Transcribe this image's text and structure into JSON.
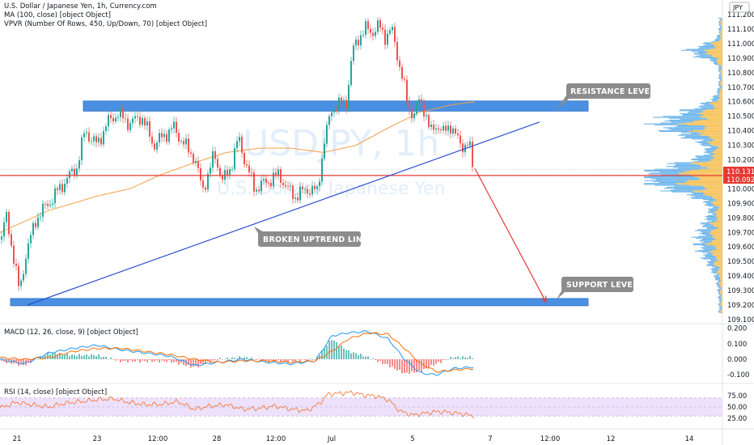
{
  "legend": {
    "main": "U.S. Dollar / Japanese Yen, 1h, Currency.com",
    "ma": "MA (100, close) [object Object]",
    "vpvr": "VPVR (Number Of Rows, 450, Up/Down, 70) [object Object]",
    "macd": "MACD (12, 26, close, 9) [object Object]",
    "rsi": "RSI (14, close) [object Object]"
  },
  "currency_badge": "JPY",
  "watermark": {
    "symbol": "USDJPY, 1h",
    "name": "U.S. Dollar / Japanese Yen"
  },
  "annotations": {
    "resistance": "RESISTANCE LEVEL",
    "support": "SUPPORT LEVEL",
    "uptrend": "BROKEN UPTREND LINE"
  },
  "price_badges": {
    "upper": "110.131",
    "lower": "110.092"
  },
  "colors": {
    "up": "#26a69a",
    "down": "#ef5350",
    "ma": "#f5a04a",
    "zone": "#4a90e2",
    "trend": "#2b4fd1",
    "horizontal": "#e53935",
    "projection": "#e53935",
    "macd": "#2196f3",
    "signal": "#ff6d00",
    "rsi": "#f57c3a",
    "rsi_band": "#ede1fb",
    "vpvr_up": "#6fb6ec",
    "vpvr_down": "#f7c35a"
  },
  "chart_data": {
    "type": "candlestick",
    "x_ticks": [
      "21",
      "23",
      "12:00",
      "28",
      "12:00",
      "Jul",
      "5",
      "7",
      "12:00",
      "12",
      "14"
    ],
    "price_axis": {
      "ticks": [
        "111.200",
        "111.100",
        "111.000",
        "110.900",
        "110.800",
        "110.700",
        "110.600",
        "110.500",
        "110.400",
        "110.300",
        "110.200",
        "110.000",
        "109.900",
        "109.800",
        "109.700",
        "109.600",
        "109.500",
        "109.400",
        "109.300",
        "109.200",
        "109.100"
      ],
      "range": [
        109.07,
        111.24
      ]
    },
    "candles_anchor_path": [
      [
        0,
        109.65
      ],
      [
        8,
        109.8
      ],
      [
        18,
        109.5
      ],
      [
        24,
        109.28
      ],
      [
        32,
        109.55
      ],
      [
        45,
        109.8
      ],
      [
        60,
        109.9
      ],
      [
        80,
        110.05
      ],
      [
        95,
        110.15
      ],
      [
        105,
        110.4
      ],
      [
        120,
        110.3
      ],
      [
        132,
        110.45
      ],
      [
        145,
        110.52
      ],
      [
        160,
        110.45
      ],
      [
        175,
        110.5
      ],
      [
        190,
        110.3
      ],
      [
        205,
        110.38
      ],
      [
        215,
        110.42
      ],
      [
        228,
        110.3
      ],
      [
        240,
        110.22
      ],
      [
        250,
        110.0
      ],
      [
        258,
        110.1
      ],
      [
        265,
        110.25
      ],
      [
        275,
        110.05
      ],
      [
        285,
        110.15
      ],
      [
        295,
        110.35
      ],
      [
        305,
        110.15
      ],
      [
        315,
        110.0
      ],
      [
        330,
        110.05
      ],
      [
        345,
        110.1
      ],
      [
        355,
        110.0
      ],
      [
        365,
        109.95
      ],
      [
        380,
        110.0
      ],
      [
        392,
        109.98
      ],
      [
        400,
        110.3
      ],
      [
        410,
        110.55
      ],
      [
        420,
        110.58
      ],
      [
        428,
        110.6
      ],
      [
        436,
        110.95
      ],
      [
        444,
        111.05
      ],
      [
        452,
        111.1
      ],
      [
        460,
        111.08
      ],
      [
        468,
        111.12
      ],
      [
        476,
        111.05
      ],
      [
        484,
        111.1
      ],
      [
        490,
        110.95
      ],
      [
        498,
        110.75
      ],
      [
        505,
        110.55
      ],
      [
        512,
        110.52
      ],
      [
        518,
        110.6
      ],
      [
        525,
        110.55
      ],
      [
        532,
        110.38
      ],
      [
        540,
        110.45
      ],
      [
        548,
        110.38
      ],
      [
        556,
        110.45
      ],
      [
        564,
        110.35
      ],
      [
        572,
        110.3
      ],
      [
        580,
        110.3
      ],
      [
        585,
        110.14
      ]
    ],
    "ma_path": [
      [
        0,
        109.7
      ],
      [
        60,
        109.85
      ],
      [
        120,
        109.95
      ],
      [
        160,
        110.0
      ],
      [
        200,
        110.1
      ],
      [
        240,
        110.18
      ],
      [
        280,
        110.25
      ],
      [
        320,
        110.28
      ],
      [
        360,
        110.28
      ],
      [
        400,
        110.25
      ],
      [
        440,
        110.3
      ],
      [
        480,
        110.42
      ],
      [
        520,
        110.53
      ],
      [
        560,
        110.58
      ],
      [
        587,
        110.6
      ]
    ],
    "resistance_zone": [
      110.535,
      110.605
    ],
    "support_zone": [
      109.195,
      109.245
    ],
    "horizontal_line": 110.092,
    "uptrend_line": [
      [
        34,
        109.2
      ],
      [
        667,
        110.46
      ]
    ],
    "projection": [
      [
        587,
        110.14
      ],
      [
        675,
        109.22
      ]
    ],
    "macd": {
      "ticks": [
        "0.200",
        "0.100",
        "0.000",
        "-0.100"
      ],
      "range": [
        -0.15,
        0.25
      ],
      "macd_path": [
        [
          0,
          0.0
        ],
        [
          30,
          -0.03
        ],
        [
          60,
          0.04
        ],
        [
          90,
          0.07
        ],
        [
          120,
          0.09
        ],
        [
          150,
          0.06
        ],
        [
          180,
          0.04
        ],
        [
          210,
          0.02
        ],
        [
          240,
          -0.04
        ],
        [
          270,
          -0.02
        ],
        [
          300,
          0.0
        ],
        [
          330,
          -0.02
        ],
        [
          360,
          -0.03
        ],
        [
          390,
          -0.01
        ],
        [
          410,
          0.15
        ],
        [
          430,
          0.17
        ],
        [
          455,
          0.18
        ],
        [
          480,
          0.13
        ],
        [
          500,
          0.0
        ],
        [
          520,
          -0.09
        ],
        [
          540,
          -0.1
        ],
        [
          560,
          -0.06
        ],
        [
          586,
          -0.05
        ]
      ],
      "signal_path": [
        [
          0,
          0.01
        ],
        [
          30,
          0.0
        ],
        [
          60,
          0.01
        ],
        [
          90,
          0.05
        ],
        [
          120,
          0.07
        ],
        [
          150,
          0.07
        ],
        [
          180,
          0.05
        ],
        [
          210,
          0.03
        ],
        [
          240,
          0.0
        ],
        [
          270,
          -0.02
        ],
        [
          300,
          -0.01
        ],
        [
          330,
          -0.01
        ],
        [
          360,
          -0.02
        ],
        [
          390,
          -0.01
        ],
        [
          410,
          0.05
        ],
        [
          430,
          0.13
        ],
        [
          455,
          0.17
        ],
        [
          480,
          0.16
        ],
        [
          500,
          0.07
        ],
        [
          520,
          -0.03
        ],
        [
          540,
          -0.08
        ],
        [
          560,
          -0.07
        ],
        [
          586,
          -0.06
        ]
      ]
    },
    "rsi": {
      "ticks": [
        "75.00",
        "50.00",
        "25.00"
      ],
      "range": [
        20,
        90
      ],
      "band": [
        30,
        70
      ],
      "path": [
        [
          0,
          48
        ],
        [
          20,
          60
        ],
        [
          40,
          55
        ],
        [
          60,
          50
        ],
        [
          80,
          58
        ],
        [
          100,
          62
        ],
        [
          120,
          66
        ],
        [
          140,
          68
        ],
        [
          160,
          60
        ],
        [
          180,
          55
        ],
        [
          200,
          56
        ],
        [
          220,
          62
        ],
        [
          240,
          45
        ],
        [
          260,
          52
        ],
        [
          280,
          55
        ],
        [
          300,
          45
        ],
        [
          320,
          47
        ],
        [
          340,
          52
        ],
        [
          360,
          45
        ],
        [
          380,
          42
        ],
        [
          395,
          58
        ],
        [
          405,
          78
        ],
        [
          420,
          80
        ],
        [
          435,
          82
        ],
        [
          450,
          76
        ],
        [
          465,
          74
        ],
        [
          480,
          66
        ],
        [
          495,
          40
        ],
        [
          510,
          32
        ],
        [
          525,
          36
        ],
        [
          540,
          40
        ],
        [
          555,
          38
        ],
        [
          570,
          35
        ],
        [
          586,
          30
        ]
      ]
    }
  }
}
